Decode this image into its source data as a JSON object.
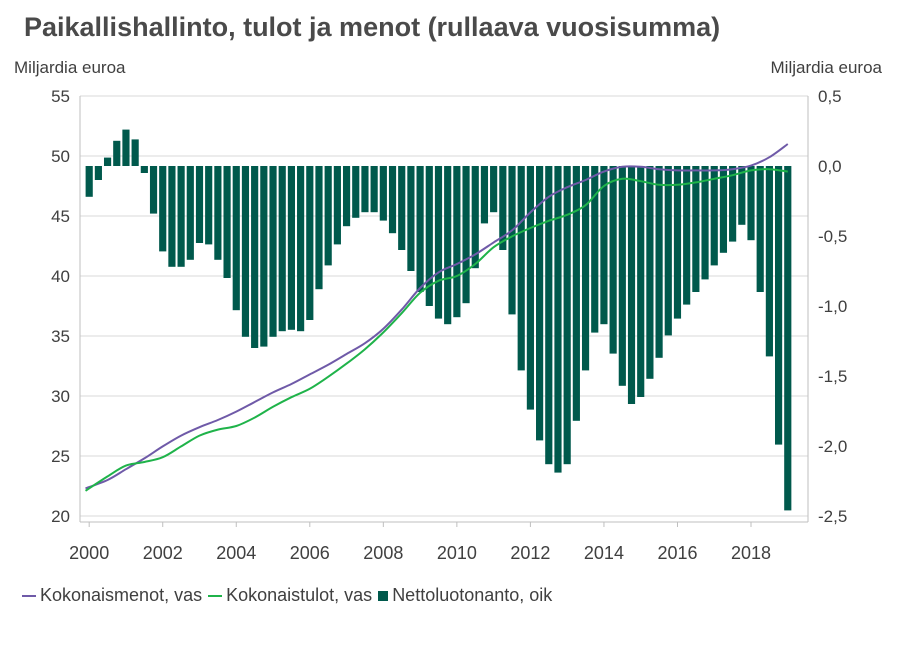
{
  "title": "Paikallishallinto, tulot ja menot (rullaava vuosisumma)",
  "unit_left": "Miljardia euroa",
  "unit_right": "Miljardia euroa",
  "colors": {
    "menot": "#6f5aa8",
    "tulot": "#1fb34a",
    "netto": "#00594c",
    "grid": "#d9d9d9"
  },
  "legend": [
    {
      "label": "Kokonaismenot, vas",
      "color": "#6f5aa8",
      "kind": "line"
    },
    {
      "label": "Kokonaistulot, vas",
      "color": "#1fb34a",
      "kind": "line"
    },
    {
      "label": "Nettoluotonanto, oik",
      "color": "#00594c",
      "kind": "bar"
    }
  ],
  "chart_data": {
    "type": "bar+line",
    "title": "Paikallishallinto, tulot ja menot (rullaava vuosisumma)",
    "x_tick_labels": [
      "2000",
      "2002",
      "2004",
      "2006",
      "2008",
      "2010",
      "2012",
      "2014",
      "2016",
      "2018"
    ],
    "y_left": {
      "label": "Miljardia euroa",
      "ylim": [
        20,
        55
      ],
      "ticks": [
        "20",
        "25",
        "30",
        "35",
        "40",
        "45",
        "50",
        "55"
      ]
    },
    "y_right": {
      "label": "Miljardia euroa",
      "ylim": [
        -2.5,
        0.5
      ],
      "ticks": [
        "-2,5",
        "-2,0",
        "-1,5",
        "-1,0",
        "-0,5",
        "0,0",
        "0,5"
      ]
    },
    "grid": true,
    "legend_position": "bottom",
    "x": [
      2000.0,
      2000.25,
      2000.5,
      2000.75,
      2001.0,
      2001.25,
      2001.5,
      2001.75,
      2002.0,
      2002.25,
      2002.5,
      2002.75,
      2003.0,
      2003.25,
      2003.5,
      2003.75,
      2004.0,
      2004.25,
      2004.5,
      2004.75,
      2005.0,
      2005.25,
      2005.5,
      2005.75,
      2006.0,
      2006.25,
      2006.5,
      2006.75,
      2007.0,
      2007.25,
      2007.5,
      2007.75,
      2008.0,
      2008.25,
      2008.5,
      2008.75,
      2009.0,
      2009.25,
      2009.5,
      2009.75,
      2010.0,
      2010.25,
      2010.5,
      2010.75,
      2011.0,
      2011.25,
      2011.5,
      2011.75,
      2012.0,
      2012.25,
      2012.5,
      2012.75,
      2013.0,
      2013.25,
      2013.5,
      2013.75,
      2014.0,
      2014.25,
      2014.5,
      2014.75,
      2015.0,
      2015.25,
      2015.5,
      2015.75,
      2016.0,
      2016.25,
      2016.5,
      2016.75,
      2017.0,
      2017.25,
      2017.5,
      2017.75,
      2018.0,
      2018.25,
      2018.5,
      2018.75,
      2019.0
    ],
    "series": [
      {
        "name": "Nettoluotonanto, oik",
        "type": "bar",
        "axis": "right",
        "values": [
          -0.22,
          -0.1,
          0.06,
          0.18,
          0.26,
          0.19,
          -0.05,
          -0.34,
          -0.61,
          -0.72,
          -0.72,
          -0.67,
          -0.55,
          -0.56,
          -0.67,
          -0.8,
          -1.03,
          -1.22,
          -1.3,
          -1.29,
          -1.22,
          -1.18,
          -1.17,
          -1.18,
          -1.1,
          -0.88,
          -0.71,
          -0.56,
          -0.43,
          -0.37,
          -0.33,
          -0.33,
          -0.39,
          -0.48,
          -0.6,
          -0.75,
          -0.9,
          -1.0,
          -1.09,
          -1.13,
          -1.08,
          -0.98,
          -0.73,
          -0.41,
          -0.33,
          -0.6,
          -1.06,
          -1.46,
          -1.74,
          -1.96,
          -2.13,
          -2.19,
          -2.13,
          -1.82,
          -1.46,
          -1.19,
          -1.13,
          -1.34,
          -1.57,
          -1.7,
          -1.65,
          -1.52,
          -1.37,
          -1.21,
          -1.09,
          -0.99,
          -0.9,
          -0.81,
          -0.71,
          -0.62,
          -0.54,
          -0.42,
          -0.53,
          -0.9,
          -1.36,
          -1.99,
          -2.46
        ]
      },
      {
        "name": "Kokonaismenot, vas",
        "type": "line",
        "axis": "left",
        "x": [
          1999.9,
          2000.5,
          2001.0,
          2001.5,
          2002.0,
          2002.5,
          2003.0,
          2003.5,
          2004.0,
          2004.5,
          2005.0,
          2005.5,
          2006.0,
          2006.5,
          2007.0,
          2007.5,
          2008.0,
          2008.5,
          2009.0,
          2009.5,
          2010.0,
          2010.5,
          2011.0,
          2011.5,
          2012.0,
          2012.5,
          2013.0,
          2013.5,
          2014.0,
          2014.5,
          2015.0,
          2015.5,
          2016.0,
          2016.5,
          2017.0,
          2017.5,
          2018.0,
          2018.5,
          2019.0
        ],
        "values": [
          22.3,
          23.0,
          23.9,
          24.8,
          25.8,
          26.7,
          27.4,
          28.0,
          28.7,
          29.5,
          30.3,
          31.0,
          31.8,
          32.6,
          33.5,
          34.4,
          35.6,
          37.2,
          39.0,
          40.3,
          41.0,
          41.8,
          42.8,
          43.8,
          45.3,
          46.6,
          47.4,
          48.0,
          48.7,
          49.1,
          49.1,
          48.9,
          48.8,
          48.8,
          48.8,
          48.9,
          49.2,
          49.9,
          51.0
        ]
      },
      {
        "name": "Kokonaistulot, vas",
        "type": "line",
        "axis": "left",
        "x": [
          1999.9,
          2000.5,
          2001.0,
          2001.5,
          2002.0,
          2002.5,
          2003.0,
          2003.5,
          2004.0,
          2004.5,
          2005.0,
          2005.5,
          2006.0,
          2006.5,
          2007.0,
          2007.5,
          2008.0,
          2008.5,
          2009.0,
          2009.5,
          2010.0,
          2010.5,
          2011.0,
          2011.5,
          2012.0,
          2012.5,
          2013.0,
          2013.5,
          2014.0,
          2014.5,
          2015.0,
          2015.5,
          2016.0,
          2016.5,
          2017.0,
          2017.5,
          2018.0,
          2018.5,
          2019.0
        ],
        "values": [
          22.1,
          23.3,
          24.2,
          24.5,
          24.9,
          25.8,
          26.7,
          27.2,
          27.5,
          28.2,
          29.1,
          29.9,
          30.6,
          31.6,
          32.7,
          33.9,
          35.3,
          36.9,
          38.6,
          39.6,
          40.0,
          41.0,
          42.4,
          43.3,
          44.0,
          44.6,
          45.1,
          45.9,
          47.5,
          48.1,
          47.9,
          47.6,
          47.6,
          47.8,
          48.1,
          48.4,
          48.8,
          48.9,
          48.7
        ]
      }
    ]
  }
}
